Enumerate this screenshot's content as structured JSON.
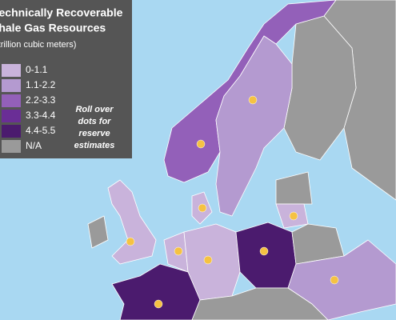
{
  "map": {
    "sea_color": "#a9d8f2",
    "legend": {
      "title": [
        "Technically Recoverable",
        "Shale Gas Resources"
      ],
      "unit": "(trillion cubic meters)",
      "items": [
        {
          "label": "0-1.1",
          "color": "#c9b3db"
        },
        {
          "label": "1.1-2.2",
          "color": "#b49ad0"
        },
        {
          "label": "2.2-3.3",
          "color": "#9360b9"
        },
        {
          "label": "3.3-4.4",
          "color": "#6a2e96"
        },
        {
          "label": "4.4-5.5",
          "color": "#4b1b6e"
        },
        {
          "label": "N/A",
          "color": "#9a9a9a"
        }
      ],
      "note": [
        "Roll over",
        "dots for",
        "reserve",
        "estimates"
      ]
    },
    "dot_color": "#f5c242"
  }
}
